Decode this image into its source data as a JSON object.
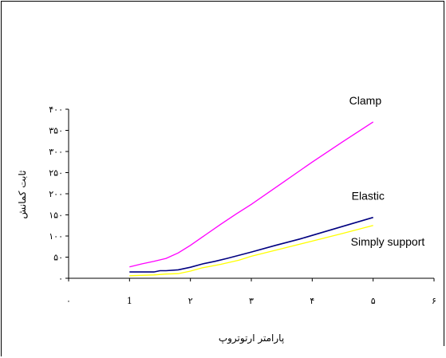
{
  "chart_data": {
    "type": "line",
    "title": "",
    "xlabel": "پارامتر ارتوتروپ",
    "ylabel": "ثابت کمانش",
    "xlim": [
      0,
      6
    ],
    "ylim": [
      0,
      400
    ],
    "x_ticks": [
      0,
      1,
      2,
      3,
      4,
      5,
      6
    ],
    "x_tick_labels": [
      "۰",
      "1",
      "۲",
      "۳",
      "۴",
      "۵",
      "۶"
    ],
    "y_ticks": [
      0,
      50,
      100,
      150,
      200,
      250,
      300,
      350,
      400
    ],
    "y_tick_labels": [
      "۰",
      "۵۰",
      "۱۰۰",
      "۱۵۰",
      "۲۰۰",
      "۲۵۰",
      "۳۰۰",
      "۳۵۰",
      "۴۰۰"
    ],
    "grid": false,
    "legend": "inline-labels",
    "series": [
      {
        "name": "Clamp",
        "color": "#ff00ff",
        "x": [
          1,
          1.2,
          1.4,
          1.6,
          1.8,
          2.0,
          2.25,
          2.5,
          2.75,
          3.0,
          3.5,
          4.0,
          4.5,
          5.0
        ],
        "y": [
          27,
          34,
          40,
          47,
          60,
          78,
          103,
          128,
          152,
          175,
          225,
          275,
          323,
          370
        ]
      },
      {
        "name": "Elastic",
        "color": "#000080",
        "x": [
          1,
          1.2,
          1.4,
          1.5,
          1.6,
          1.8,
          2.0,
          2.2,
          2.4,
          2.6,
          3.0,
          3.4,
          3.8,
          4.2,
          4.6,
          5.0
        ],
        "y": [
          15,
          15,
          15,
          18,
          18,
          20,
          26,
          34,
          40,
          47,
          62,
          78,
          93,
          110,
          127,
          144
        ]
      },
      {
        "name": "Simply support",
        "color": "#ffff00",
        "x": [
          1,
          1.2,
          1.4,
          1.6,
          1.8,
          2.0,
          2.2,
          2.5,
          2.8,
          3.0,
          3.5,
          4.0,
          4.5,
          5.0
        ],
        "y": [
          6,
          7,
          8,
          10,
          11,
          17,
          25,
          33,
          43,
          52,
          70,
          88,
          106,
          125
        ]
      }
    ]
  }
}
